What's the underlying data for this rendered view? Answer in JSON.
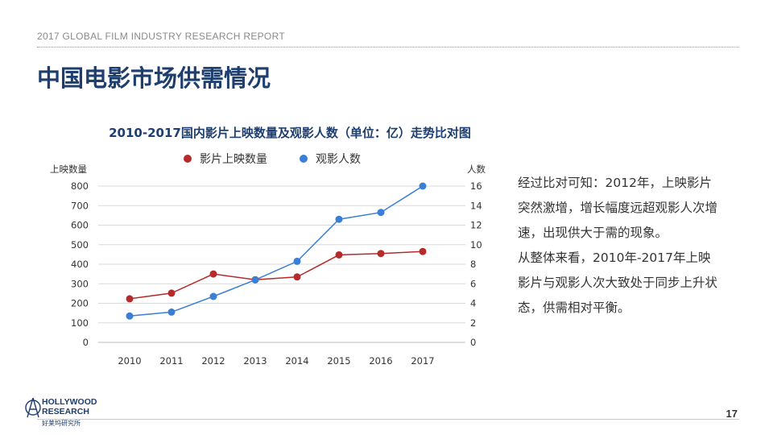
{
  "header": {
    "report_name": "2017 GLOBAL FILM INDUSTRY RESEARCH REPORT"
  },
  "page_title": "中国电影市场供需情况",
  "chart_data": {
    "type": "line",
    "title": "2010-2017国内影片上映数量及观影人数（单位：亿）走势比对图",
    "categories": [
      "2010",
      "2011",
      "2012",
      "2013",
      "2014",
      "2015",
      "2016",
      "2017"
    ],
    "series": [
      {
        "name": "影片上映数量",
        "axis": "left",
        "color": "#b52a2a",
        "values": [
          223,
          252,
          350,
          321,
          335,
          448,
          455,
          465
        ]
      },
      {
        "name": "观影人数",
        "axis": "right",
        "color": "#3a7fd5",
        "values": [
          2.7,
          3.1,
          4.7,
          6.4,
          8.3,
          12.6,
          13.3,
          16.0
        ]
      }
    ],
    "ylabel": "上映数量",
    "ylabel_right": "人数",
    "ylim": [
      0,
      800
    ],
    "yticks": [
      "0",
      "100",
      "200",
      "300",
      "400",
      "500",
      "600",
      "700",
      "800"
    ],
    "ylim_right": [
      0,
      16
    ],
    "yticks_right": [
      "0",
      "2",
      "4",
      "6",
      "8",
      "10",
      "12",
      "14",
      "16"
    ],
    "grid": true,
    "legend_position": "top"
  },
  "insight": {
    "paragraph1": "经过比对可知：2012年，上映影片突然激增，增长幅度远超观影人次增速，出现供大于需的现象。",
    "paragraph2": "从整体来看，2010年-2017年上映影片与观影人次大致处于同步上升状态，供需相对平衡。"
  },
  "logo": {
    "name_line1": "HOLLYWOOD",
    "name_line2": "RESEARCH",
    "name_cn": "好莱坞研究所"
  },
  "page_number": "17",
  "colors": {
    "title": "#1d3e6e",
    "series1": "#b52a2a",
    "series2": "#3a7fd5"
  }
}
